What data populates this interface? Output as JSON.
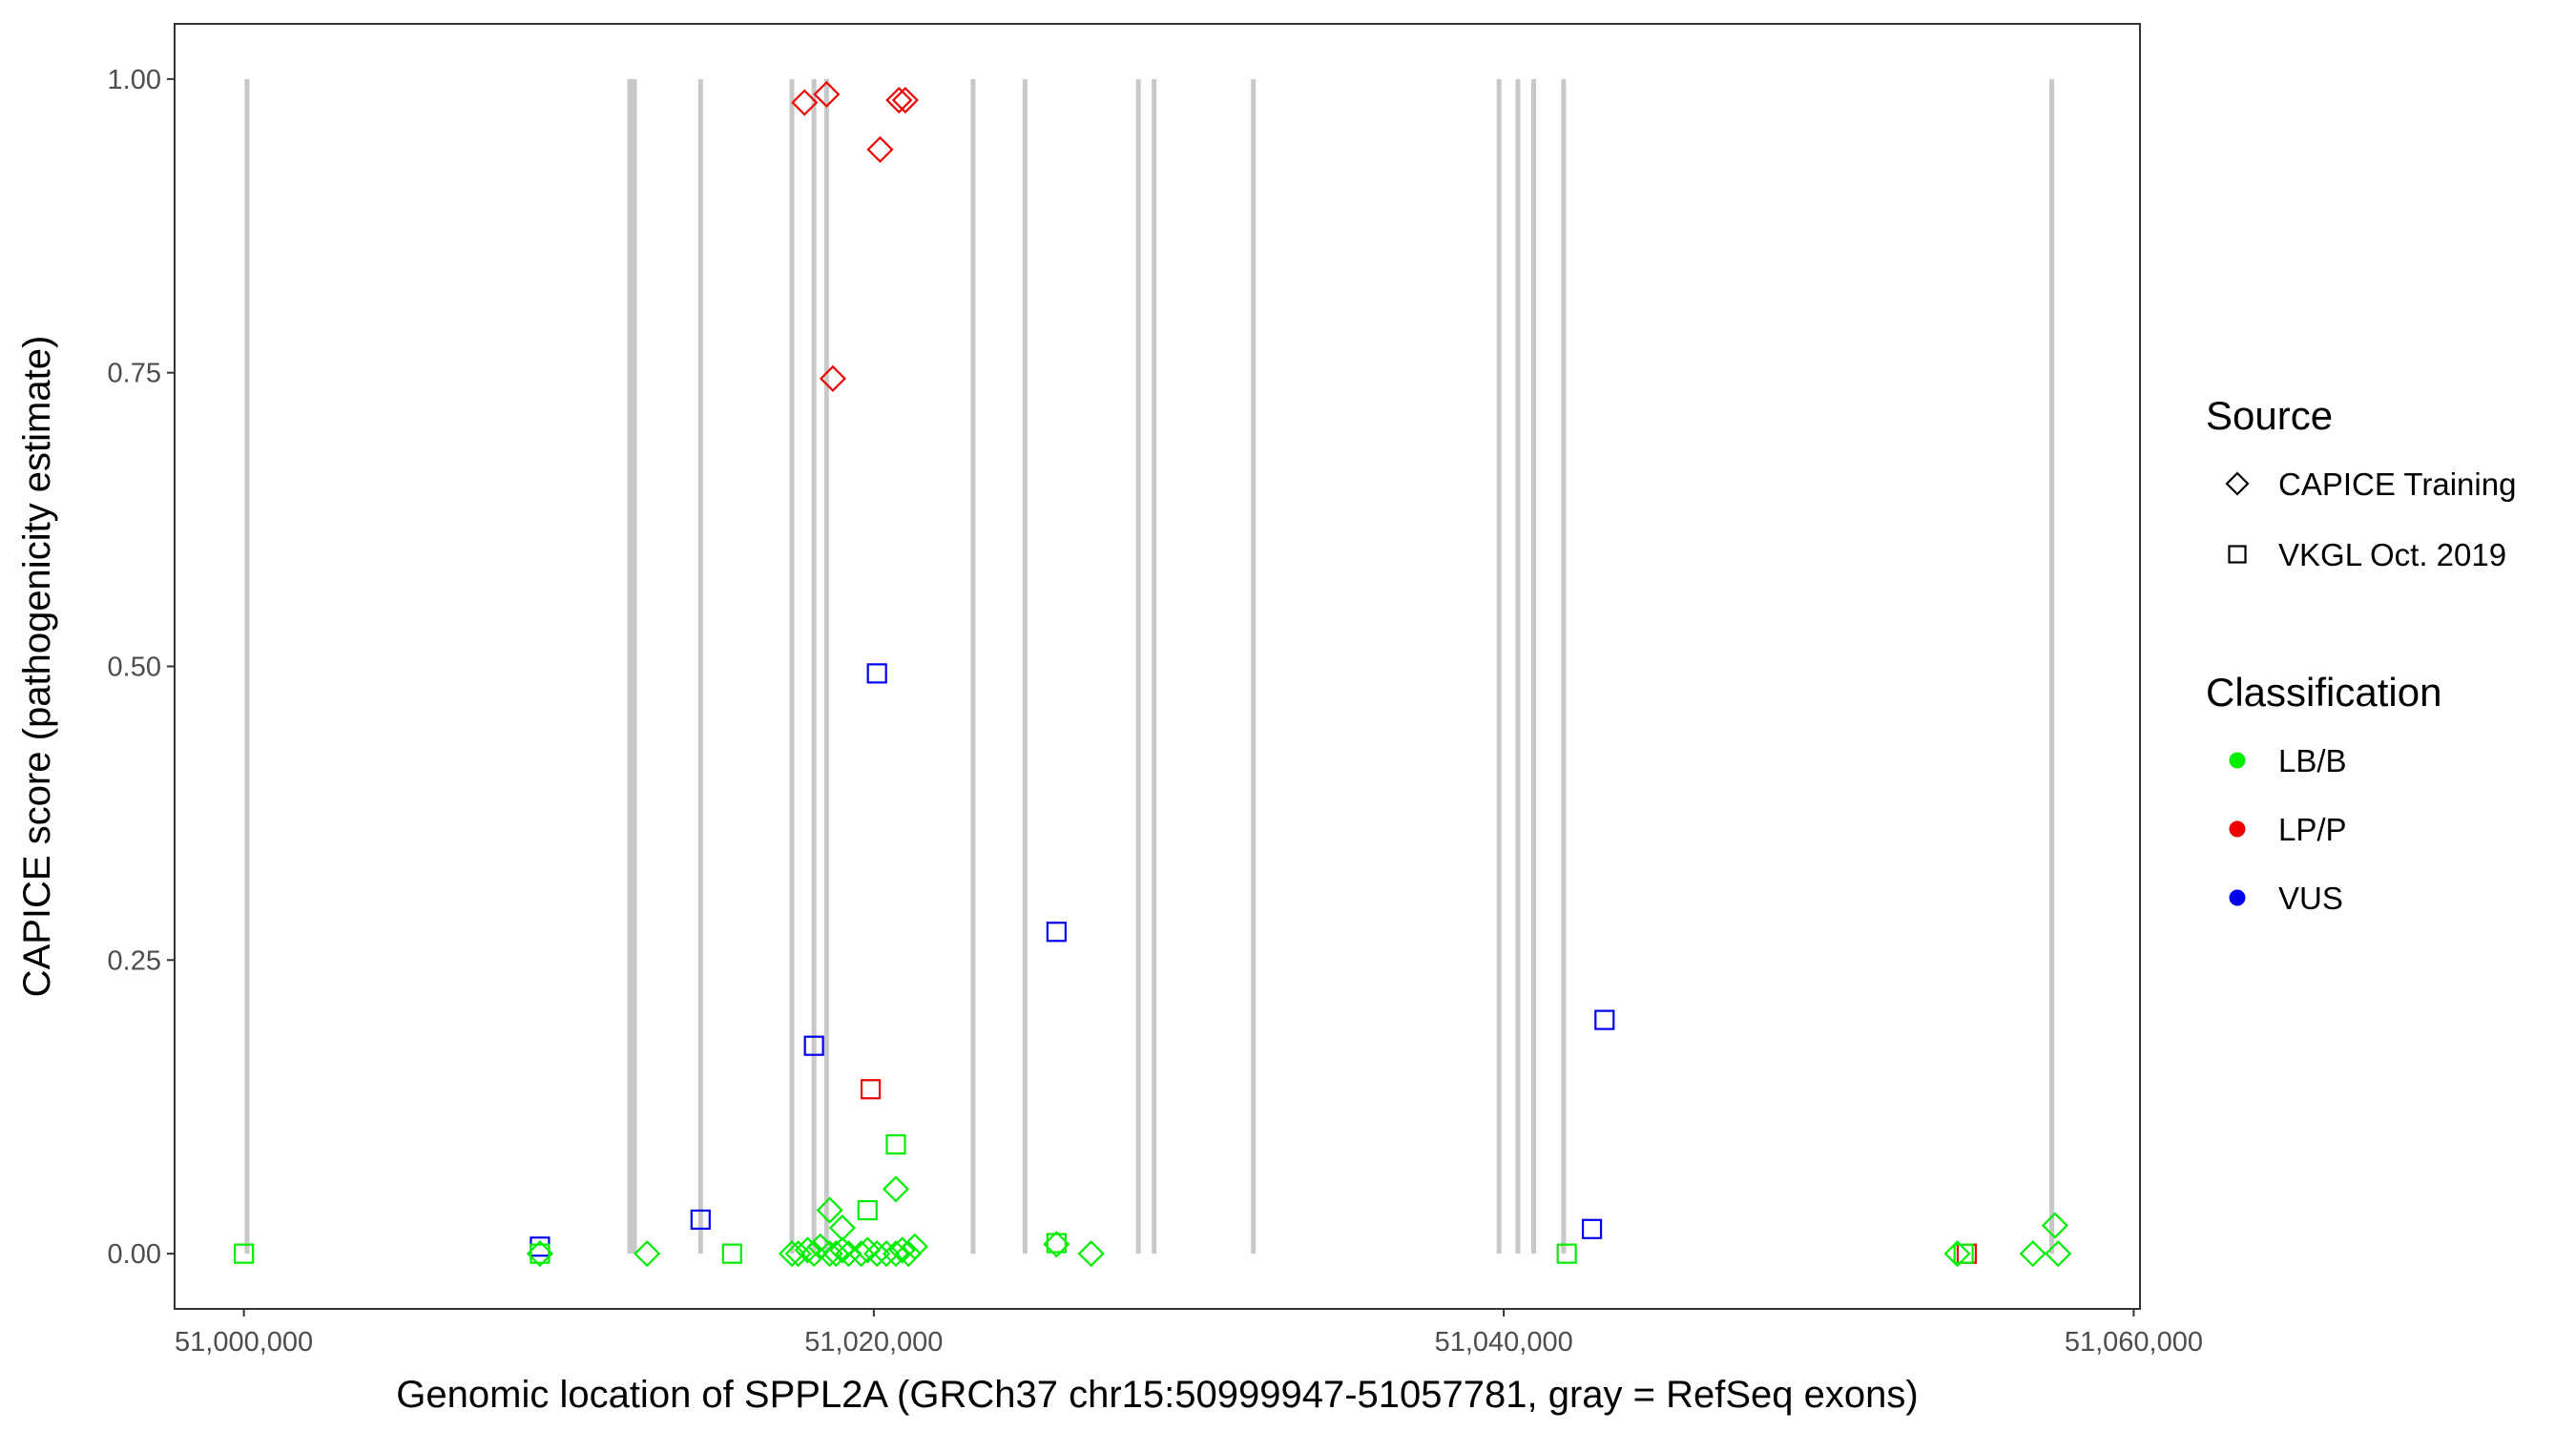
{
  "chart_data": {
    "type": "scatter",
    "title": "",
    "xlabel": "Genomic location of SPPL2A (GRCh37 chr15:50999947-51057781, gray = RefSeq exons)",
    "ylabel": "CAPICE score (pathogenicity estimate)",
    "xlim": [
      50997800,
      51060200
    ],
    "ylim": [
      -0.047,
      1.047
    ],
    "x_ticks": [
      51000000,
      51020000,
      51040000,
      51060000
    ],
    "x_tick_labels": [
      "51,000,000",
      "51,020,000",
      "51,040,000",
      "51,060,000"
    ],
    "y_ticks": [
      0,
      0.25,
      0.5,
      0.75,
      1
    ],
    "y_tick_labels": [
      "0.00",
      "0.25",
      "0.50",
      "0.75",
      "1.00"
    ],
    "grid": false,
    "exon_positions": [
      51000100,
      51012250,
      51012400,
      51014500,
      51017400,
      51018100,
      51018500,
      51023150,
      51024800,
      51028400,
      51028900,
      51032050,
      51039850,
      51040450,
      51040950,
      51041900,
      51057400
    ],
    "exon_color": "#c8c8c8",
    "class_colors": {
      "LB/B": "#00ee00",
      "LP/P": "#ee0000",
      "VUS": "#0000ee"
    },
    "legend": {
      "position": "right",
      "source_title": "Source",
      "source_items": [
        {
          "label": "CAPICE Training",
          "shape": "diamond"
        },
        {
          "label": "VKGL Oct. 2019",
          "shape": "square"
        }
      ],
      "class_title": "Classification",
      "class_items": [
        {
          "label": "LB/B",
          "color": "#00ee00"
        },
        {
          "label": "LP/P",
          "color": "#ee0000"
        },
        {
          "label": "VUS",
          "color": "#0000ee"
        }
      ]
    },
    "series": [
      {
        "source": "CAPICE Training",
        "classification": "LP/P",
        "shape": "diamond",
        "color": "#ee0000",
        "points": [
          [
            51017800,
            0.98
          ],
          [
            51018500,
            0.987
          ],
          [
            51020800,
            0.982
          ],
          [
            51021000,
            0.982
          ],
          [
            51020200,
            0.94
          ],
          [
            51018700,
            0.745
          ]
        ]
      },
      {
        "source": "VKGL Oct. 2019",
        "classification": "LP/P",
        "shape": "square",
        "color": "#ee0000",
        "points": [
          [
            51019900,
            0.14
          ],
          [
            51054700,
            0.0
          ]
        ]
      },
      {
        "source": "VKGL Oct. 2019",
        "classification": "VUS",
        "shape": "square",
        "color": "#0000ee",
        "points": [
          [
            51020100,
            0.494
          ],
          [
            51025800,
            0.274
          ],
          [
            51018100,
            0.177
          ],
          [
            51043200,
            0.199
          ],
          [
            51014500,
            0.029
          ],
          [
            51009400,
            0.006
          ],
          [
            51042800,
            0.021
          ]
        ]
      },
      {
        "source": "VKGL Oct. 2019",
        "classification": "LB/B",
        "shape": "square",
        "color": "#00ee00",
        "points": [
          [
            51000000,
            0.0
          ],
          [
            51009400,
            0.0
          ],
          [
            51015500,
            0.0
          ],
          [
            51020700,
            0.093
          ],
          [
            51019800,
            0.037
          ],
          [
            51025800,
            0.009
          ],
          [
            51042000,
            0.0
          ],
          [
            51054600,
            0.0
          ]
        ]
      },
      {
        "source": "CAPICE Training",
        "classification": "LB/B",
        "shape": "diamond",
        "color": "#00ee00",
        "points": [
          [
            51009400,
            0.0
          ],
          [
            51012800,
            0.0
          ],
          [
            51017400,
            0.0
          ],
          [
            51017600,
            0.0
          ],
          [
            51017900,
            0.003
          ],
          [
            51018100,
            0.0
          ],
          [
            51018300,
            0.006
          ],
          [
            51018600,
            0.0
          ],
          [
            51018800,
            0.0
          ],
          [
            51019000,
            0.003
          ],
          [
            51019200,
            0.0
          ],
          [
            51019600,
            0.0
          ],
          [
            51019800,
            0.003
          ],
          [
            51020100,
            0.0
          ],
          [
            51020400,
            0.0
          ],
          [
            51020700,
            0.0
          ],
          [
            51020900,
            0.003
          ],
          [
            51021100,
            0.0
          ],
          [
            51021300,
            0.006
          ],
          [
            51018600,
            0.037
          ],
          [
            51019000,
            0.022
          ],
          [
            51020700,
            0.055
          ],
          [
            51025800,
            0.008
          ],
          [
            51026900,
            0.0
          ],
          [
            51054400,
            0.0
          ],
          [
            51056800,
            0.0
          ],
          [
            51057500,
            0.024
          ],
          [
            51057600,
            0.0
          ]
        ]
      }
    ]
  }
}
